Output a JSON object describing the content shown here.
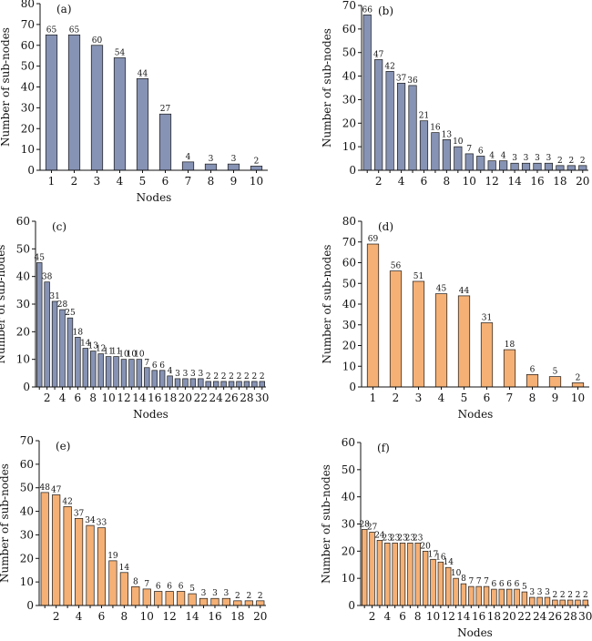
{
  "figure": {
    "colors": {
      "blue": "#8793b4",
      "orange": "#f5b075",
      "edge": "#1a1a1a"
    }
  },
  "chart_data": [
    {
      "type": "bar",
      "panel_label": "(a)",
      "color": "blue",
      "xlabel": "Nodes",
      "ylabel": "Number of sub-nodes",
      "ylim": [
        0,
        80
      ],
      "yticks": [
        0,
        10,
        20,
        30,
        40,
        50,
        60,
        70,
        80
      ],
      "categories": [
        "1",
        "2",
        "3",
        "4",
        "5",
        "6",
        "7",
        "8",
        "9",
        "10"
      ],
      "xticks": [
        "1",
        "2",
        "3",
        "4",
        "5",
        "6",
        "7",
        "8",
        "9",
        "10"
      ],
      "values": [
        65,
        65,
        60,
        54,
        44,
        27,
        4,
        3,
        3,
        2
      ],
      "data_labels": [
        "65",
        "65",
        "60",
        "54",
        "44",
        "27",
        "4",
        "3",
        "3",
        "2"
      ]
    },
    {
      "type": "bar",
      "panel_label": "(b)",
      "color": "blue",
      "xlabel": "",
      "ylabel": "Number of sub-nodes",
      "ylim": [
        0,
        70
      ],
      "yticks": [
        0,
        10,
        20,
        30,
        40,
        50,
        60,
        70
      ],
      "categories": [
        "1",
        "2",
        "3",
        "4",
        "5",
        "6",
        "7",
        "8",
        "9",
        "10",
        "11",
        "12",
        "13",
        "14",
        "15",
        "16",
        "17",
        "18",
        "19",
        "20"
      ],
      "xticks": [
        "",
        "2",
        "",
        "4",
        "",
        "6",
        "",
        "8",
        "",
        "10",
        "",
        "12",
        "",
        "14",
        "",
        "16",
        "",
        "18",
        "",
        "20"
      ],
      "values": [
        66,
        47,
        42,
        37,
        36,
        21,
        16,
        13,
        10,
        7,
        6,
        4,
        4,
        3,
        3,
        3,
        3,
        2,
        2,
        2
      ],
      "data_labels": [
        "66",
        "47",
        "42",
        "37",
        "36",
        "21",
        "16",
        "13",
        "10",
        "7",
        "6",
        "4",
        "4",
        "3",
        "3",
        "3",
        "3",
        "2",
        "2",
        "2"
      ]
    },
    {
      "type": "bar",
      "panel_label": "(c)",
      "color": "blue",
      "xlabel": "Nodes",
      "ylabel": "Number of sub-nodes",
      "ylim": [
        0,
        60
      ],
      "yticks": [
        0,
        10,
        20,
        30,
        40,
        50,
        60
      ],
      "categories": [
        "1",
        "2",
        "3",
        "4",
        "5",
        "6",
        "7",
        "8",
        "9",
        "10",
        "11",
        "12",
        "13",
        "14",
        "15",
        "16",
        "17",
        "18",
        "19",
        "20",
        "21",
        "22",
        "23",
        "24",
        "25",
        "26",
        "27",
        "28",
        "29",
        "30"
      ],
      "xticks": [
        "",
        "2",
        "",
        "4",
        "",
        "6",
        "",
        "8",
        "",
        "10",
        "",
        "12",
        "",
        "14",
        "",
        "16",
        "",
        "18",
        "",
        "20",
        "",
        "22",
        "",
        "24",
        "",
        "26",
        "",
        "28",
        "",
        "30"
      ],
      "values": [
        45,
        38,
        31,
        28,
        25,
        18,
        14,
        13,
        12,
        11,
        11,
        10,
        10,
        10,
        7,
        6,
        6,
        4,
        3,
        3,
        3,
        3,
        2,
        2,
        2,
        2,
        2,
        2,
        2,
        2
      ],
      "data_labels": [
        "45",
        "38",
        "31",
        "28",
        "25",
        "18",
        "14",
        "13",
        "12",
        "11",
        "11",
        "10",
        "10",
        "10",
        "7",
        "6",
        "6",
        "4",
        "3",
        "3",
        "3",
        "3",
        "2",
        "2",
        "2",
        "2",
        "2",
        "2",
        "2",
        "2"
      ]
    },
    {
      "type": "bar",
      "panel_label": "(d)",
      "color": "orange",
      "xlabel": "Nodes",
      "ylabel": "Number of sub-nodes",
      "ylim": [
        0,
        80
      ],
      "yticks": [
        0,
        10,
        20,
        30,
        40,
        50,
        60,
        70,
        80
      ],
      "categories": [
        "1",
        "2",
        "3",
        "4",
        "5",
        "6",
        "7",
        "8",
        "9",
        "10"
      ],
      "xticks": [
        "1",
        "2",
        "3",
        "4",
        "5",
        "6",
        "7",
        "8",
        "9",
        "10"
      ],
      "values": [
        69,
        56,
        51,
        45,
        44,
        31,
        18,
        6,
        5,
        2
      ],
      "data_labels": [
        "69",
        "56",
        "51",
        "45",
        "44",
        "31",
        "18",
        "6",
        "5",
        "2"
      ]
    },
    {
      "type": "bar",
      "panel_label": "(e)",
      "color": "orange",
      "xlabel": "",
      "ylabel": "Number of sub-nodes",
      "ylim": [
        0,
        70
      ],
      "yticks": [
        0,
        10,
        20,
        30,
        40,
        50,
        60,
        70
      ],
      "categories": [
        "1",
        "2",
        "3",
        "4",
        "5",
        "6",
        "7",
        "8",
        "9",
        "10",
        "11",
        "12",
        "13",
        "14",
        "15",
        "16",
        "17",
        "18",
        "19",
        "20"
      ],
      "xticks": [
        "",
        "2",
        "",
        "4",
        "",
        "6",
        "",
        "8",
        "",
        "10",
        "",
        "12",
        "",
        "14",
        "",
        "16",
        "",
        "18",
        "",
        "20"
      ],
      "values": [
        48,
        47,
        42,
        37,
        34,
        33,
        19,
        14,
        8,
        7,
        6,
        6,
        6,
        5,
        3,
        3,
        3,
        2,
        2,
        2
      ],
      "data_labels": [
        "48",
        "47",
        "42",
        "37",
        "34",
        "33",
        "19",
        "14",
        "8",
        "7",
        "6",
        "6",
        "6",
        "5",
        "3",
        "3",
        "3",
        "2",
        "2",
        "2"
      ]
    },
    {
      "type": "bar",
      "panel_label": "(f)",
      "color": "orange",
      "xlabel": "Nodes",
      "ylabel": "Number of sub-nodes",
      "ylim": [
        0,
        60
      ],
      "yticks": [
        0,
        10,
        20,
        30,
        40,
        50,
        60
      ],
      "categories": [
        "1",
        "2",
        "3",
        "4",
        "5",
        "6",
        "7",
        "8",
        "9",
        "10",
        "11",
        "12",
        "13",
        "14",
        "15",
        "16",
        "17",
        "18",
        "19",
        "20",
        "21",
        "22",
        "23",
        "24",
        "25",
        "26",
        "27",
        "28",
        "29",
        "30"
      ],
      "xticks": [
        "",
        "2",
        "",
        "4",
        "",
        "6",
        "",
        "8",
        "",
        "10",
        "",
        "12",
        "",
        "14",
        "",
        "16",
        "",
        "18",
        "",
        "20",
        "",
        "22",
        "",
        "24",
        "",
        "26",
        "",
        "28",
        "",
        "30"
      ],
      "values": [
        28,
        27,
        24,
        23,
        23,
        23,
        23,
        23,
        20,
        17,
        16,
        14,
        10,
        8,
        7,
        7,
        7,
        6,
        6,
        6,
        6,
        5,
        3,
        3,
        3,
        2,
        2,
        2,
        2,
        2
      ],
      "data_labels": [
        "28",
        "27",
        "24",
        "23",
        "23",
        "23",
        "23",
        "23",
        "20",
        "17",
        "16",
        "14",
        "10",
        "8",
        "7",
        "7",
        "7",
        "6",
        "6",
        "6",
        "6",
        "5",
        "3",
        "3",
        "3",
        "2",
        "2",
        "2",
        "2",
        "2"
      ]
    }
  ]
}
